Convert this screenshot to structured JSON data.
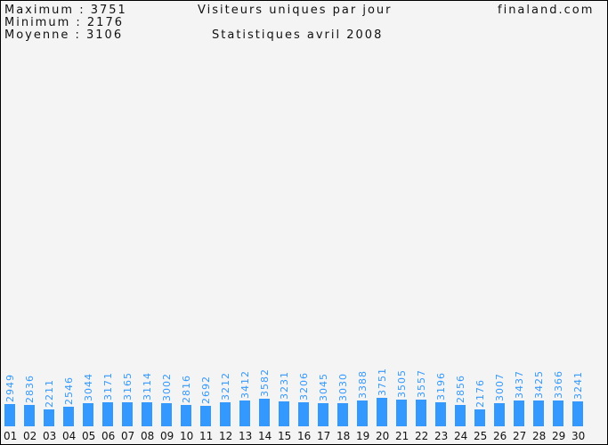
{
  "header": {
    "stats": [
      {
        "label": "Maximum",
        "value": "3751"
      },
      {
        "label": "Minimum",
        "value": "2176"
      },
      {
        "label": "Moyenne",
        "value": "3106"
      }
    ],
    "title": "Visiteurs uniques par jour",
    "subtitle": "Statistiques avril 2008",
    "site": "finaland.com"
  },
  "chart_data": {
    "type": "bar",
    "title": "Visiteurs uniques par jour",
    "subtitle": "Statistiques avril 2008",
    "categories": [
      "01",
      "02",
      "03",
      "04",
      "05",
      "06",
      "07",
      "08",
      "09",
      "10",
      "11",
      "12",
      "13",
      "14",
      "15",
      "16",
      "17",
      "18",
      "19",
      "20",
      "21",
      "22",
      "23",
      "24",
      "25",
      "26",
      "27",
      "28",
      "29",
      "30"
    ],
    "values": [
      2949,
      2836,
      2211,
      2546,
      3044,
      3171,
      3165,
      3114,
      3002,
      2816,
      2692,
      3212,
      3412,
      3582,
      3231,
      3206,
      3045,
      3030,
      3388,
      3751,
      3505,
      3557,
      3196,
      2856,
      2176,
      3007,
      3437,
      3425,
      3366,
      3241
    ],
    "xlabel": "",
    "ylabel": "",
    "grid": false,
    "colors": {
      "bar": "#3399ff",
      "value_label": "#3399ff",
      "axis_label": "#111111"
    }
  }
}
